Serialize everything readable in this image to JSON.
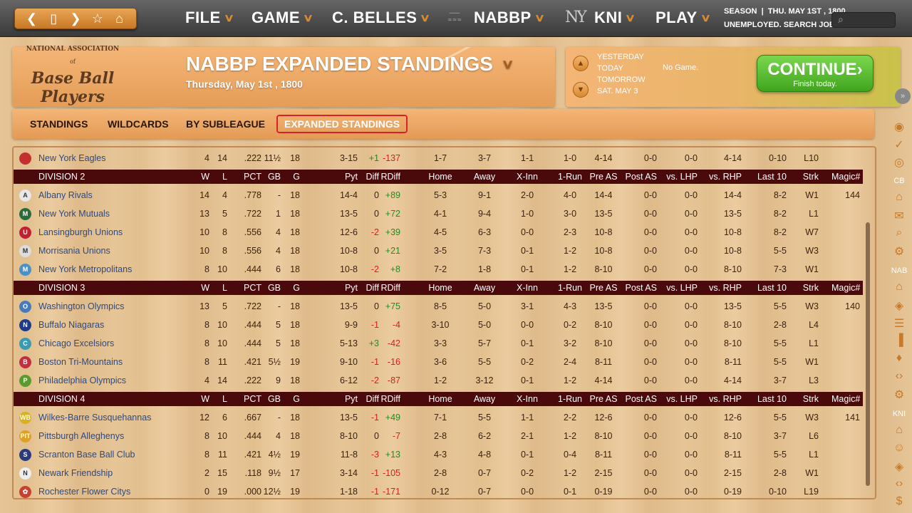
{
  "topbar": {
    "nav_icons": [
      "chevron-left-icon",
      "page-icon",
      "chevron-right-icon",
      "star-icon",
      "home-icon"
    ],
    "menus": [
      {
        "label": "FILE"
      },
      {
        "label": "GAME"
      },
      {
        "label": "C. BELLES"
      },
      {
        "label": "NABBP"
      },
      {
        "label": "KNI"
      },
      {
        "label": "PLAY"
      }
    ],
    "season_label": "SEASON",
    "date": "THU. MAY 1ST , 1800",
    "status": "UNEMPLOYED. SEARCH JOBS",
    "ny": "NY"
  },
  "header": {
    "logo_lines": [
      "NATIONAL ASSOCIATION",
      "of",
      "Base Ball Players"
    ],
    "title": "NABBP EXPANDED STANDINGS",
    "date": "Thursday, May 1st , 1800"
  },
  "schedule": {
    "days": [
      "YESTERDAY",
      "TODAY",
      "TOMORROW",
      "SAT. MAY 3"
    ],
    "today_status": "No Game.",
    "continue_label": "CONTINUE",
    "continue_sub": "Finish today."
  },
  "tabs": [
    {
      "label": "STANDINGS"
    },
    {
      "label": "WILDCARDS"
    },
    {
      "label": "BY SUBLEAGUE"
    },
    {
      "label": "EXPANDED STANDINGS",
      "active": true
    }
  ],
  "sidebar": {
    "labels": [
      "CB",
      "NAB",
      "KNI"
    ]
  },
  "table": {
    "columns": [
      "W",
      "L",
      "PCT",
      "GB",
      "G",
      "Pyt",
      "Diff",
      "RDiff",
      "Home",
      "Away",
      "X-Inn",
      "1-Run",
      "Pre AS",
      "Post AS",
      "vs. LHP",
      "vs. RHP",
      "Last 10",
      "Strk",
      "Magic#"
    ],
    "partial_row": {
      "team": "New York Eagles",
      "icon": "#c23030",
      "vals": [
        "4",
        "14",
        ".222",
        "11½",
        "18",
        "3-15",
        "+1",
        "-137",
        "1-7",
        "3-7",
        "1-1",
        "1-0",
        "4-14",
        "0-0",
        "0-0",
        "4-14",
        "0-10",
        "L10",
        ""
      ]
    },
    "divisions": [
      {
        "name": "DIVISION 2",
        "rows": [
          {
            "team": "Albany Rivals",
            "icon": "#e8e8e8",
            "letter": "A",
            "vals": [
              "14",
              "4",
              ".778",
              "-",
              "18",
              "14-4",
              "0",
              "+89",
              "5-3",
              "9-1",
              "2-0",
              "4-0",
              "14-4",
              "0-0",
              "0-0",
              "14-4",
              "8-2",
              "W1",
              "144"
            ]
          },
          {
            "team": "New York Mutuals",
            "icon": "#2a6b3a",
            "letter": "M",
            "vals": [
              "13",
              "5",
              ".722",
              "1",
              "18",
              "13-5",
              "0",
              "+72",
              "4-1",
              "9-4",
              "1-0",
              "3-0",
              "13-5",
              "0-0",
              "0-0",
              "13-5",
              "8-2",
              "L1",
              ""
            ]
          },
          {
            "team": "Lansingburgh Unions",
            "icon": "#c02030",
            "letter": "U",
            "vals": [
              "10",
              "8",
              ".556",
              "4",
              "18",
              "12-6",
              "-2",
              "+39",
              "4-5",
              "6-3",
              "0-0",
              "2-3",
              "10-8",
              "0-0",
              "0-0",
              "10-8",
              "8-2",
              "W7",
              ""
            ]
          },
          {
            "team": "Morrisania Unions",
            "icon": "#dddddd",
            "letter": "M",
            "vals": [
              "10",
              "8",
              ".556",
              "4",
              "18",
              "10-8",
              "0",
              "+21",
              "3-5",
              "7-3",
              "0-1",
              "1-2",
              "10-8",
              "0-0",
              "0-0",
              "10-8",
              "5-5",
              "W3",
              ""
            ]
          },
          {
            "team": "New York Metropolitans",
            "icon": "#4a90c8",
            "letter": "M",
            "vals": [
              "8",
              "10",
              ".444",
              "6",
              "18",
              "10-8",
              "-2",
              "+8",
              "7-2",
              "1-8",
              "0-1",
              "1-2",
              "8-10",
              "0-0",
              "0-0",
              "8-10",
              "7-3",
              "W1",
              ""
            ]
          }
        ]
      },
      {
        "name": "DIVISION 3",
        "rows": [
          {
            "team": "Washington Olympics",
            "icon": "#4a7ab8",
            "letter": "O",
            "vals": [
              "13",
              "5",
              ".722",
              "-",
              "18",
              "13-5",
              "0",
              "+75",
              "8-5",
              "5-0",
              "3-1",
              "4-3",
              "13-5",
              "0-0",
              "0-0",
              "13-5",
              "5-5",
              "W3",
              "140"
            ]
          },
          {
            "team": "Buffalo Niagaras",
            "icon": "#1f3a8a",
            "letter": "N",
            "vals": [
              "8",
              "10",
              ".444",
              "5",
              "18",
              "9-9",
              "-1",
              "-4",
              "3-10",
              "5-0",
              "0-0",
              "0-2",
              "8-10",
              "0-0",
              "0-0",
              "8-10",
              "2-8",
              "L4",
              ""
            ]
          },
          {
            "team": "Chicago Excelsiors",
            "icon": "#3a9ab0",
            "letter": "C",
            "vals": [
              "8",
              "10",
              ".444",
              "5",
              "18",
              "5-13",
              "+3",
              "-42",
              "3-3",
              "5-7",
              "0-1",
              "3-2",
              "8-10",
              "0-0",
              "0-0",
              "8-10",
              "5-5",
              "L1",
              ""
            ]
          },
          {
            "team": "Boston Tri-Mountains",
            "icon": "#c03040",
            "letter": "B",
            "vals": [
              "8",
              "11",
              ".421",
              "5½",
              "19",
              "9-10",
              "-1",
              "-16",
              "3-6",
              "5-5",
              "0-2",
              "2-4",
              "8-11",
              "0-0",
              "0-0",
              "8-11",
              "5-5",
              "W1",
              ""
            ]
          },
          {
            "team": "Philadelphia Olympics",
            "icon": "#5a9a30",
            "letter": "P",
            "vals": [
              "4",
              "14",
              ".222",
              "9",
              "18",
              "6-12",
              "-2",
              "-87",
              "1-2",
              "3-12",
              "0-1",
              "1-2",
              "4-14",
              "0-0",
              "0-0",
              "4-14",
              "3-7",
              "L3",
              ""
            ]
          }
        ]
      },
      {
        "name": "DIVISION 4",
        "rows": [
          {
            "team": "Wilkes-Barre Susquehannas",
            "icon": "#d8b020",
            "letter": "WB",
            "vals": [
              "12",
              "6",
              ".667",
              "-",
              "18",
              "13-5",
              "-1",
              "+49",
              "7-1",
              "5-5",
              "1-1",
              "2-2",
              "12-6",
              "0-0",
              "0-0",
              "12-6",
              "5-5",
              "W3",
              "141"
            ]
          },
          {
            "team": "Pittsburgh Alleghenys",
            "icon": "#e0a020",
            "letter": "PIT",
            "vals": [
              "8",
              "10",
              ".444",
              "4",
              "18",
              "8-10",
              "0",
              "-7",
              "2-8",
              "6-2",
              "2-1",
              "1-2",
              "8-10",
              "0-0",
              "0-0",
              "8-10",
              "3-7",
              "L6",
              ""
            ]
          },
          {
            "team": "Scranton Base Ball Club",
            "icon": "#2a3a7a",
            "letter": "S",
            "vals": [
              "8",
              "11",
              ".421",
              "4½",
              "19",
              "11-8",
              "-3",
              "+13",
              "4-3",
              "4-8",
              "0-1",
              "0-4",
              "8-11",
              "0-0",
              "0-0",
              "8-11",
              "5-5",
              "L1",
              ""
            ]
          },
          {
            "team": "Newark Friendship",
            "icon": "#eeeeee",
            "letter": "N",
            "vals": [
              "2",
              "15",
              ".118",
              "9½",
              "17",
              "3-14",
              "-1",
              "-105",
              "2-8",
              "0-7",
              "0-2",
              "1-2",
              "2-15",
              "0-0",
              "0-0",
              "2-15",
              "2-8",
              "W1",
              ""
            ]
          },
          {
            "team": "Rochester Flower Citys",
            "icon": "#c84030",
            "letter": "✿",
            "vals": [
              "0",
              "19",
              ".000",
              "12½",
              "19",
              "1-18",
              "-1",
              "-171",
              "0-12",
              "0-7",
              "0-0",
              "0-1",
              "0-19",
              "0-0",
              "0-0",
              "0-19",
              "0-10",
              "L19",
              ""
            ]
          }
        ]
      }
    ]
  }
}
